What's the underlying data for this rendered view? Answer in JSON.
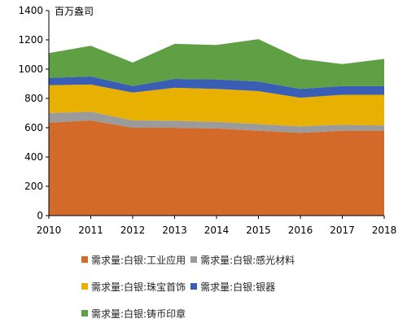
{
  "chart_data": {
    "type": "area",
    "stacked": true,
    "unit_label": "百万盎司",
    "x": [
      2010,
      2011,
      2012,
      2013,
      2014,
      2015,
      2016,
      2017,
      2018
    ],
    "ylim": [
      0,
      1400
    ],
    "yticks": [
      0,
      200,
      400,
      600,
      800,
      1000,
      1200,
      1400
    ],
    "grid": false,
    "legend_position": "bottom",
    "series": [
      {
        "name": "需求量:白银:工业应用",
        "color": "#D46A2A",
        "values": [
          635,
          650,
          600,
          600,
          595,
          580,
          565,
          580,
          580
        ]
      },
      {
        "name": "需求量:白银:感光材料",
        "color": "#9B9B9B",
        "values": [
          65,
          60,
          50,
          48,
          45,
          45,
          45,
          40,
          35
        ]
      },
      {
        "name": "需求量:白银:珠宝首饰",
        "color": "#E8B000",
        "values": [
          190,
          185,
          190,
          225,
          225,
          225,
          195,
          205,
          210
        ]
      },
      {
        "name": "需求量:白银:银器",
        "color": "#3A5DB5",
        "values": [
          50,
          55,
          45,
          60,
          65,
          65,
          60,
          60,
          60
        ]
      },
      {
        "name": "需求量:白银:铸币印章",
        "color": "#5FA044",
        "values": [
          170,
          210,
          160,
          240,
          235,
          290,
          205,
          150,
          185
        ]
      }
    ]
  }
}
